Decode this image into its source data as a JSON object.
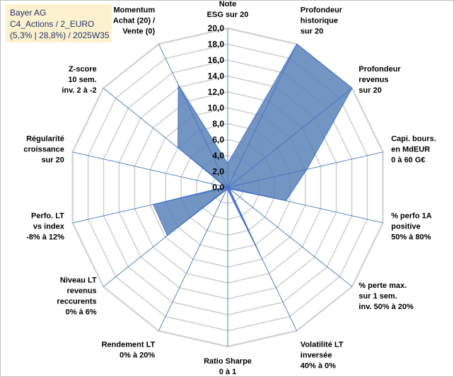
{
  "header": {
    "line1": "Bayer AG",
    "line2": "C4_Actions / 2_EURO",
    "line3": "(5,3% | 28,8%) / 2025W35"
  },
  "chart_data": {
    "type": "radar",
    "rmin": 0,
    "rmax": 20,
    "tick_step": 2,
    "tick_labels": [
      "0,0",
      "2,0",
      "4,0",
      "6,0",
      "8,0",
      "10,0",
      "12,0",
      "14,0",
      "16,0",
      "18,0",
      "20,0"
    ],
    "grid": true,
    "legend": "none",
    "colors": {
      "fill": "#5b82b8",
      "stroke": "#4472c4",
      "grid": "#d0d0d0",
      "spoke": "#4472c4"
    },
    "axes": [
      {
        "label": [
          "Note",
          "ESG sur 20"
        ],
        "value": 3.0
      },
      {
        "label": [
          "Profondeur",
          "historique",
          "sur 20"
        ],
        "value": 20.0
      },
      {
        "label": [
          "Profondeur",
          "revenus",
          "sur 20"
        ],
        "value": 20.0
      },
      {
        "label": [
          "Capi. bours.",
          "en MdEUR",
          "0 à 60 G€"
        ],
        "value": 10.2
      },
      {
        "label": [
          "% perfo 1A",
          "positive",
          "50% à 80%"
        ],
        "value": 7.5
      },
      {
        "label": [
          "% perte max.",
          "sur 1 sem.",
          "inv. 50% à 20%"
        ],
        "value": 0.3
      },
      {
        "label": [
          "Volatilité LT",
          "inversée",
          "40% à 0%"
        ],
        "value": 9.8
      },
      {
        "label": [
          "Ratio Sharpe",
          "0 à 1"
        ],
        "value": 0.3
      },
      {
        "label": [
          "Rendement LT",
          "0% à 20%"
        ],
        "value": 0.3
      },
      {
        "label": [
          "Niveau LT",
          "revenus",
          "reccurents",
          "0% à 6%"
        ],
        "value": 9.7
      },
      {
        "label": [
          "Perfo. LT",
          "vs index",
          "-8% à 12%"
        ],
        "value": 9.6
      },
      {
        "label": [
          "Régularité",
          "croissance",
          "sur 20"
        ],
        "value": 0.3
      },
      {
        "label": [
          "Z-score",
          "10 sem.",
          "inv. 2 à -2"
        ],
        "value": 8.0
      },
      {
        "label": [
          "Momentum",
          "Achat (20) /",
          "Vente (0)"
        ],
        "value": 14.3
      }
    ]
  }
}
